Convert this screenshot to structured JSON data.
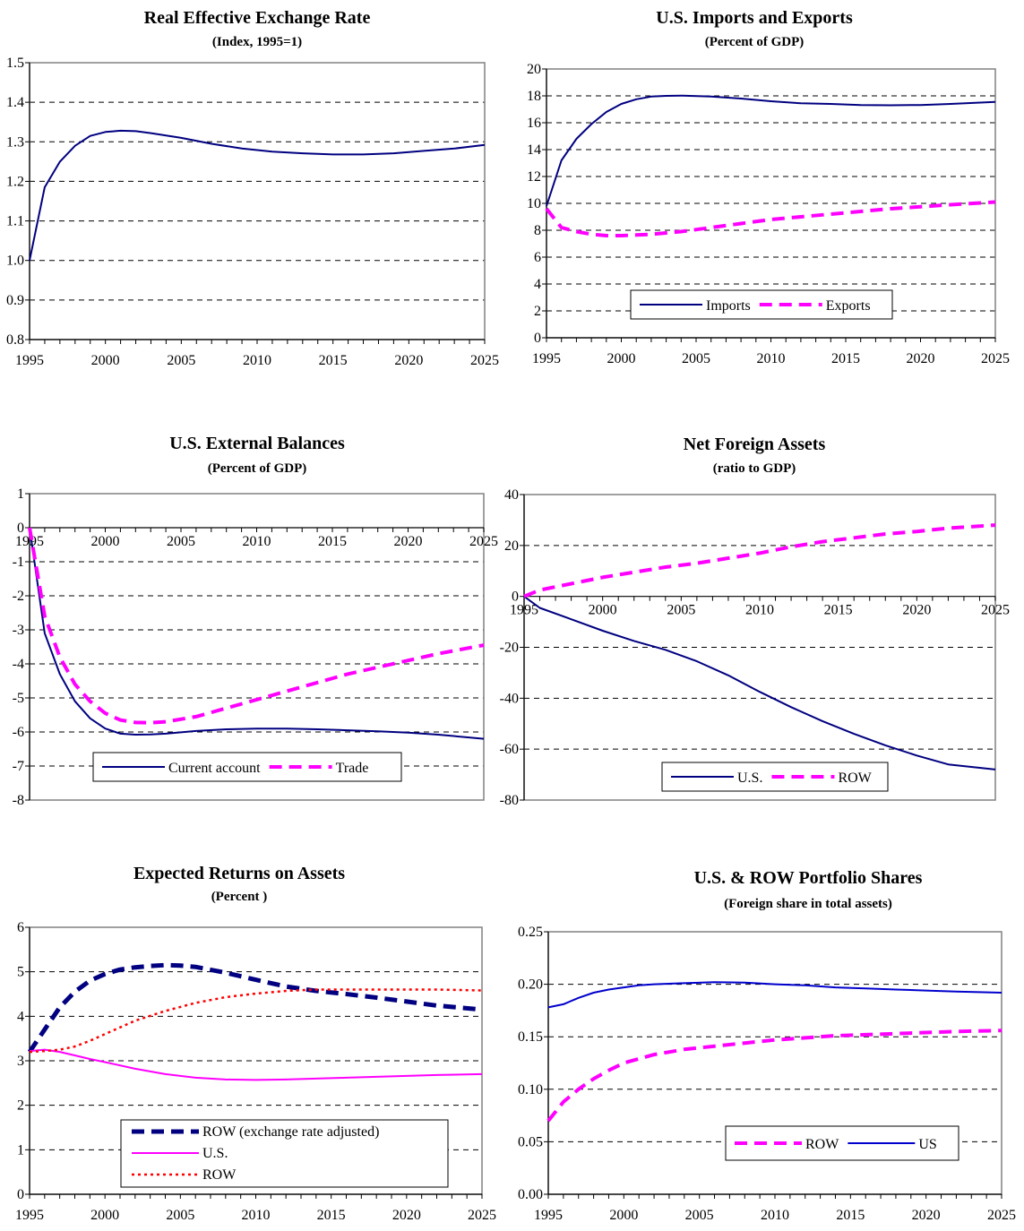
{
  "chart_data": [
    {
      "type": "line",
      "title": "Real Effective Exchange Rate",
      "subtitle": "(Index, 1995=1)",
      "xlim": [
        1995,
        2025
      ],
      "ylim": [
        0.8,
        1.5
      ],
      "xticks": [
        1995,
        2000,
        2005,
        2010,
        2015,
        2020,
        2025
      ],
      "yticks": [
        0.8,
        0.9,
        1.0,
        1.1,
        1.2,
        1.3,
        1.4,
        1.5
      ],
      "ytick_labels": [
        "0.8",
        "0.9",
        "1.0",
        "1.1",
        "1.2",
        "1.3",
        "1.4",
        "1.5"
      ],
      "grid": "horizontal dashed",
      "x_axis_at_zero": false,
      "series": [
        {
          "color": "#000080",
          "style": "solid",
          "x": [
            1995,
            1996,
            1997,
            1998,
            1999,
            2000,
            2001,
            2002,
            2003,
            2005,
            2007,
            2009,
            2011,
            2013,
            2015,
            2017,
            2019,
            2021,
            2023,
            2025
          ],
          "y": [
            1.0,
            1.185,
            1.25,
            1.29,
            1.315,
            1.325,
            1.328,
            1.327,
            1.322,
            1.31,
            1.295,
            1.283,
            1.275,
            1.271,
            1.268,
            1.268,
            1.271,
            1.277,
            1.283,
            1.292
          ]
        }
      ]
    },
    {
      "type": "line",
      "title": "U.S. Imports and Exports",
      "subtitle": "(Percent of GDP)",
      "xlim": [
        1995,
        2025
      ],
      "ylim": [
        0,
        20
      ],
      "xticks": [
        1995,
        2000,
        2005,
        2010,
        2015,
        2020,
        2025
      ],
      "yticks": [
        0,
        2,
        4,
        6,
        8,
        10,
        12,
        14,
        16,
        18,
        20
      ],
      "ytick_labels": [
        "0",
        "2",
        "4",
        "6",
        "8",
        "10",
        "12",
        "14",
        "16",
        "18",
        "20"
      ],
      "grid": "horizontal dashed",
      "x_axis_at_zero": false,
      "legend": {
        "position": "bottom-center",
        "entries": [
          "Imports",
          "Exports"
        ]
      },
      "series": [
        {
          "name": "Imports",
          "color": "#000080",
          "style": "solid",
          "x": [
            1995,
            1996,
            1997,
            1998,
            1999,
            2000,
            2001,
            2002,
            2003,
            2004,
            2006,
            2008,
            2010,
            2012,
            2014,
            2016,
            2018,
            2020,
            2022,
            2025
          ],
          "y": [
            9.8,
            13.2,
            14.8,
            15.9,
            16.8,
            17.4,
            17.75,
            17.95,
            18.0,
            18.02,
            17.95,
            17.8,
            17.6,
            17.45,
            17.4,
            17.32,
            17.3,
            17.32,
            17.4,
            17.55
          ]
        },
        {
          "name": "Exports",
          "color": "#ff00ff",
          "style": "dashed",
          "x": [
            1995,
            1996,
            1997,
            1998,
            1999,
            2000,
            2001,
            2002,
            2004,
            2006,
            2008,
            2010,
            2012,
            2014,
            2016,
            2018,
            2020,
            2022,
            2025
          ],
          "y": [
            9.6,
            8.2,
            7.9,
            7.7,
            7.6,
            7.6,
            7.65,
            7.7,
            7.9,
            8.2,
            8.5,
            8.8,
            9.0,
            9.2,
            9.4,
            9.6,
            9.75,
            9.9,
            10.1
          ]
        }
      ]
    },
    {
      "type": "line",
      "title": "U.S. External Balances",
      "subtitle": "(Percent of GDP)",
      "xlim": [
        1995,
        2025
      ],
      "ylim": [
        -8,
        1
      ],
      "xticks": [
        1995,
        2000,
        2005,
        2010,
        2015,
        2020,
        2025
      ],
      "yticks": [
        -8,
        -7,
        -6,
        -5,
        -4,
        -3,
        -2,
        -1,
        0,
        1
      ],
      "ytick_labels": [
        "-8",
        "-7",
        "-6",
        "-5",
        "-4",
        "-3",
        "-2",
        "-1",
        "0",
        "1"
      ],
      "grid": "horizontal dashed",
      "x_axis_at_zero": true,
      "legend": {
        "position": "bottom-center",
        "entries": [
          "Current account",
          "Trade"
        ]
      },
      "series": [
        {
          "name": "Current account",
          "color": "#000080",
          "style": "solid",
          "x": [
            1995,
            1996,
            1997,
            1998,
            1999,
            2000,
            2001,
            2002,
            2003,
            2004,
            2006,
            2008,
            2010,
            2012,
            2014,
            2016,
            2018,
            2020,
            2022,
            2025
          ],
          "y": [
            0,
            -3.1,
            -4.3,
            -5.1,
            -5.6,
            -5.9,
            -6.05,
            -6.08,
            -6.07,
            -6.05,
            -5.97,
            -5.92,
            -5.9,
            -5.9,
            -5.92,
            -5.95,
            -5.98,
            -6.02,
            -6.08,
            -6.2
          ]
        },
        {
          "name": "Trade",
          "color": "#ff00ff",
          "style": "dashed",
          "x": [
            1995,
            1996,
            1997,
            1998,
            1999,
            2000,
            2001,
            2002,
            2003,
            2004,
            2006,
            2008,
            2010,
            2012,
            2014,
            2016,
            2018,
            2020,
            2022,
            2025
          ],
          "y": [
            0,
            -2.6,
            -3.8,
            -4.6,
            -5.1,
            -5.45,
            -5.65,
            -5.72,
            -5.73,
            -5.7,
            -5.55,
            -5.3,
            -5.05,
            -4.8,
            -4.55,
            -4.3,
            -4.1,
            -3.9,
            -3.7,
            -3.45
          ]
        }
      ]
    },
    {
      "type": "line",
      "title": "Net Foreign Assets",
      "subtitle": "(ratio to GDP)",
      "xlim": [
        1995,
        2025
      ],
      "ylim": [
        -80,
        40
      ],
      "xticks": [
        1995,
        2000,
        2005,
        2010,
        2015,
        2020,
        2025
      ],
      "yticks": [
        -80,
        -60,
        -40,
        -20,
        0,
        20,
        40
      ],
      "ytick_labels": [
        "-80",
        "-60",
        "-40",
        "-20",
        "0",
        "20",
        "40"
      ],
      "grid": "horizontal dashed",
      "x_axis_at_zero": true,
      "legend": {
        "position": "bottom-center",
        "entries": [
          "U.S.",
          "ROW"
        ]
      },
      "series": [
        {
          "name": "U.S.",
          "color": "#000080",
          "style": "solid",
          "x": [
            1995,
            1996,
            1998,
            2000,
            2002,
            2004,
            2006,
            2008,
            2010,
            2012,
            2014,
            2016,
            2018,
            2020,
            2022,
            2025
          ],
          "y": [
            0,
            -4.5,
            -9,
            -13.5,
            -17.5,
            -21,
            -25.5,
            -31,
            -37.5,
            -43.5,
            -49,
            -54,
            -58.5,
            -62.5,
            -66,
            -68
          ]
        },
        {
          "name": "ROW",
          "color": "#ff00ff",
          "style": "dashed",
          "x": [
            1995,
            1996,
            1998,
            2000,
            2002,
            2004,
            2006,
            2008,
            2010,
            2012,
            2014,
            2016,
            2018,
            2020,
            2022,
            2025
          ],
          "y": [
            0,
            2.5,
            5,
            7.5,
            9.5,
            11.5,
            13,
            15,
            17,
            19.5,
            21.5,
            23,
            24.5,
            25.5,
            26.8,
            28
          ]
        }
      ]
    },
    {
      "type": "line",
      "title": "Expected Returns on Assets",
      "subtitle": "(Percent )",
      "xlim": [
        1995,
        2025
      ],
      "ylim": [
        0,
        6
      ],
      "xticks": [
        1995,
        2000,
        2005,
        2010,
        2015,
        2020,
        2025
      ],
      "yticks": [
        0,
        1,
        2,
        3,
        4,
        5,
        6
      ],
      "ytick_labels": [
        "0",
        "1",
        "2",
        "3",
        "4",
        "5",
        "6"
      ],
      "grid": "horizontal dashed",
      "x_axis_at_zero": false,
      "legend": {
        "position": "bottom-center",
        "entries": [
          "ROW (exchange rate adjusted)",
          "U.S.",
          "ROW"
        ]
      },
      "series": [
        {
          "name": "ROW (exchange rate adjusted)",
          "color": "#000080",
          "style": "bold-dashed",
          "x": [
            1995,
            1996,
            1997,
            1998,
            1999,
            2000,
            2001,
            2002,
            2003,
            2004,
            2005,
            2006,
            2008,
            2010,
            2012,
            2014,
            2016,
            2018,
            2020,
            2022,
            2025
          ],
          "y": [
            3.2,
            3.7,
            4.2,
            4.55,
            4.8,
            4.95,
            5.05,
            5.1,
            5.13,
            5.15,
            5.14,
            5.11,
            4.98,
            4.82,
            4.67,
            4.57,
            4.5,
            4.42,
            4.33,
            4.24,
            4.15
          ]
        },
        {
          "name": "U.S.",
          "color": "#ff00ff",
          "style": "solid",
          "x": [
            1995,
            1996,
            1997,
            1998,
            1999,
            2000,
            2002,
            2004,
            2006,
            2008,
            2010,
            2012,
            2014,
            2016,
            2018,
            2020,
            2022,
            2025
          ],
          "y": [
            3.22,
            3.25,
            3.2,
            3.12,
            3.04,
            2.97,
            2.82,
            2.7,
            2.62,
            2.58,
            2.57,
            2.58,
            2.6,
            2.62,
            2.64,
            2.66,
            2.68,
            2.7
          ]
        },
        {
          "name": "ROW",
          "color": "#ff0000",
          "style": "dotted",
          "x": [
            1995,
            1996,
            1997,
            1998,
            1999,
            2000,
            2002,
            2004,
            2006,
            2008,
            2010,
            2012,
            2014,
            2016,
            2018,
            2020,
            2022,
            2025
          ],
          "y": [
            3.2,
            3.22,
            3.25,
            3.32,
            3.45,
            3.6,
            3.9,
            4.12,
            4.3,
            4.43,
            4.51,
            4.57,
            4.6,
            4.6,
            4.6,
            4.6,
            4.6,
            4.58
          ]
        }
      ]
    },
    {
      "type": "line",
      "title": "U.S. & ROW Portfolio Shares",
      "subtitle": "(Foreign share in total assets)",
      "xlim": [
        1995,
        2025
      ],
      "ylim": [
        0,
        0.25
      ],
      "xticks": [
        1995,
        2000,
        2005,
        2010,
        2015,
        2020,
        2025
      ],
      "yticks": [
        0,
        0.05,
        0.1,
        0.15,
        0.2,
        0.25
      ],
      "ytick_labels": [
        "0.00",
        "0.05",
        "0.10",
        "0.15",
        "0.20",
        "0.25"
      ],
      "grid": "horizontal dashed",
      "x_axis_at_zero": false,
      "legend": {
        "position": "bottom-center",
        "entries": [
          "ROW",
          "US"
        ]
      },
      "series": [
        {
          "name": "ROW",
          "color": "#ff00ff",
          "style": "dashed",
          "x": [
            1995,
            1996,
            1997,
            1998,
            1999,
            2000,
            2002,
            2004,
            2006,
            2008,
            2010,
            2012,
            2014,
            2016,
            2018,
            2020,
            2022,
            2025
          ],
          "y": [
            0.07,
            0.088,
            0.1,
            0.11,
            0.118,
            0.125,
            0.133,
            0.138,
            0.141,
            0.144,
            0.147,
            0.149,
            0.151,
            0.152,
            0.153,
            0.154,
            0.155,
            0.156
          ]
        },
        {
          "name": "US",
          "color": "#0000cc",
          "style": "solid",
          "x": [
            1995,
            1996,
            1997,
            1998,
            1999,
            2000,
            2001,
            2002,
            2004,
            2006,
            2008,
            2010,
            2012,
            2014,
            2016,
            2018,
            2020,
            2022,
            2025
          ],
          "y": [
            0.178,
            0.181,
            0.187,
            0.192,
            0.195,
            0.197,
            0.199,
            0.2,
            0.201,
            0.202,
            0.2015,
            0.2,
            0.199,
            0.197,
            0.196,
            0.195,
            0.194,
            0.193,
            0.192
          ]
        }
      ]
    }
  ]
}
